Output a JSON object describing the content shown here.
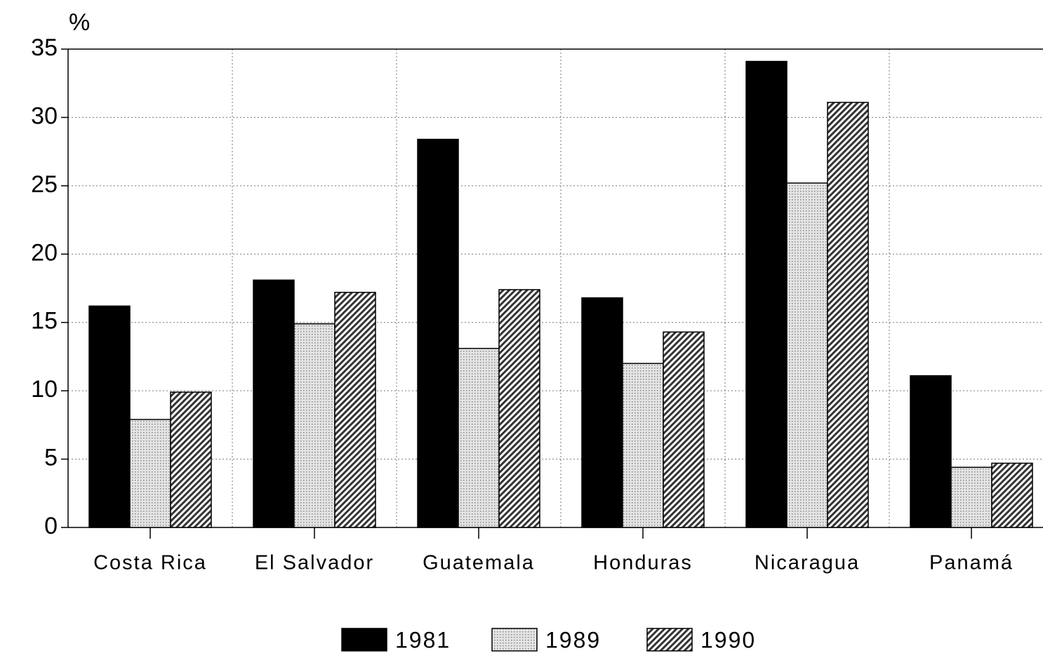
{
  "chart_data": {
    "type": "bar",
    "y_label": "%",
    "categories": [
      "Costa Rica",
      "El Salvador",
      "Guatemala",
      "Honduras",
      "Nicaragua",
      "Panamá"
    ],
    "series": [
      {
        "name": "1981",
        "color": "#000000",
        "pattern": "solid",
        "values": [
          16.2,
          18.1,
          28.4,
          16.8,
          34.1,
          11.1
        ]
      },
      {
        "name": "1989",
        "color": "#c8c8c8",
        "pattern": "dotted",
        "values": [
          7.9,
          14.9,
          13.1,
          12.0,
          25.2,
          4.4
        ]
      },
      {
        "name": "1990",
        "color": "#555555",
        "pattern": "diagonal",
        "values": [
          9.9,
          17.2,
          17.4,
          14.3,
          31.1,
          4.7
        ]
      }
    ],
    "ylim": [
      0,
      35
    ],
    "yticks": [
      0,
      5,
      10,
      15,
      20,
      25,
      30,
      35
    ],
    "grid": true,
    "legend": "bottom"
  }
}
